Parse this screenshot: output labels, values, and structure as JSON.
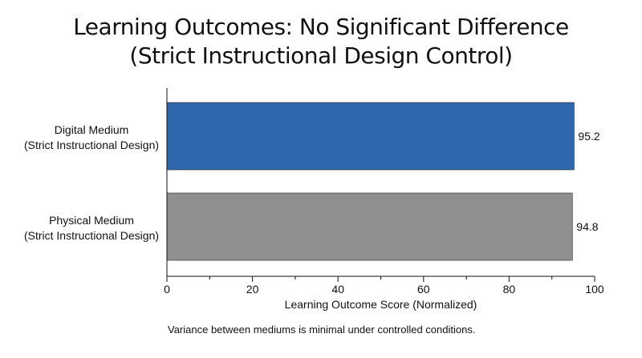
{
  "chart_data": {
    "type": "bar",
    "orientation": "horizontal",
    "title": [
      "Learning Outcomes: No Significant Difference",
      "(Strict Instructional Design Control)"
    ],
    "categories": [
      [
        "Digital Medium",
        "(Strict Instructional Design)"
      ],
      [
        "Physical Medium",
        "(Strict Instructional Design)"
      ]
    ],
    "values": [
      95.2,
      94.8
    ],
    "value_labels": [
      "95.2",
      "94.8"
    ],
    "colors": [
      "#2f67ac",
      "#8f8f8f"
    ],
    "xlabel": "Learning Outcome Score (Normalized)",
    "xlim": [
      0,
      100
    ],
    "xticks": [
      0,
      20,
      40,
      60,
      80,
      100
    ],
    "xtick_labels": [
      "0",
      "20",
      "40",
      "60",
      "80",
      "100"
    ],
    "grid": false
  },
  "footnote": "Variance between mediums is minimal under controlled conditions."
}
